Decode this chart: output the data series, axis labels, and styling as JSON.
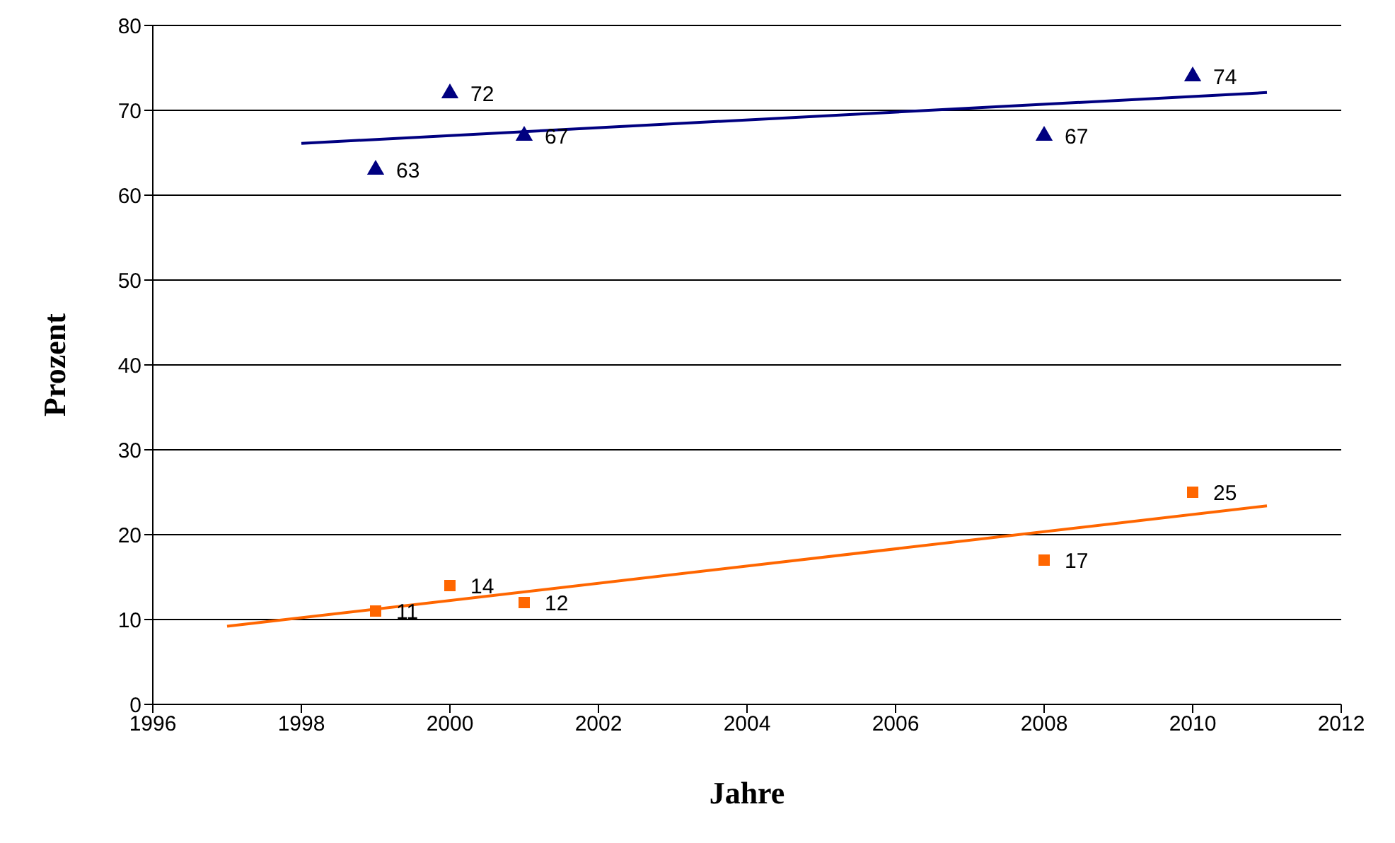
{
  "chart_data": {
    "type": "scatter",
    "xlabel": "Jahre",
    "ylabel": "Prozent",
    "xlim": [
      1996,
      2012
    ],
    "xticks": [
      1996,
      1998,
      2000,
      2002,
      2004,
      2006,
      2008,
      2010,
      2012
    ],
    "ylim": [
      0,
      80
    ],
    "yticks": [
      0,
      10,
      20,
      30,
      40,
      50,
      60,
      70,
      80
    ],
    "grid": "y",
    "series": [
      {
        "type": "scatter",
        "color": "#000080",
        "marker": "triangle",
        "x": [
          1999,
          2000,
          2001,
          2008,
          2010
        ],
        "values": [
          63,
          72,
          67,
          67,
          74
        ],
        "value_labels": [
          "63",
          "72",
          "67",
          "67",
          "74"
        ]
      },
      {
        "type": "scatter",
        "color": "#ff6600",
        "marker": "square",
        "x": [
          1999,
          2000,
          2001,
          2008,
          2010
        ],
        "values": [
          11,
          14,
          12,
          17,
          25
        ],
        "value_labels": [
          "11",
          "14",
          "12",
          "17",
          "25"
        ]
      },
      {
        "type": "line",
        "color": "#000080",
        "marker": "none",
        "x": [
          1998,
          2011
        ],
        "values": [
          66.1,
          72.1
        ]
      },
      {
        "type": "line",
        "color": "#ff6600",
        "marker": "none",
        "x": [
          1997,
          2011
        ],
        "values": [
          9.2,
          23.4
        ]
      }
    ]
  }
}
